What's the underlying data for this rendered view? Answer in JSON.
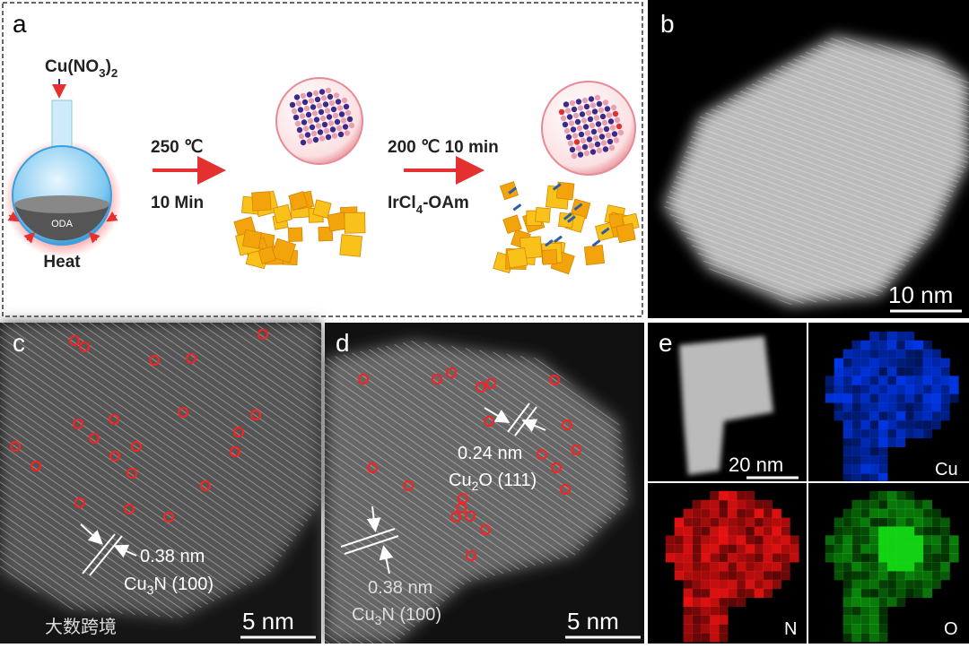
{
  "panel_a": {
    "label": "a",
    "precursor": [
      "Cu(NO",
      "3",
      ")",
      "2"
    ],
    "solvent": "ODA",
    "heat": "Heat",
    "step1": {
      "temperature": "250 ℃",
      "time": "10 Min"
    },
    "step2": {
      "condition": "200 ℃ 10 min",
      "reagent": [
        "IrCl",
        "4",
        "-OAm"
      ]
    }
  },
  "panel_b": {
    "label": "b",
    "scale_bar": "10 nm"
  },
  "panel_c": {
    "label": "c",
    "spacing": "0.38 nm",
    "plane": [
      "Cu",
      "3",
      "N (100)"
    ],
    "scale_bar": "5 nm"
  },
  "panel_d": {
    "label": "d",
    "spacing_1": "0.24 nm",
    "plane_1": [
      "Cu",
      "2",
      "O (111)"
    ],
    "spacing_2": "0.38 nm",
    "plane_2": [
      "Cu",
      "3",
      "N (100)"
    ],
    "scale_bar": "5 nm"
  },
  "panel_e": {
    "label": "e",
    "scale_bar": "20 nm",
    "elements": [
      "Cu",
      "N",
      "O"
    ]
  },
  "watermark": "大数跨境"
}
